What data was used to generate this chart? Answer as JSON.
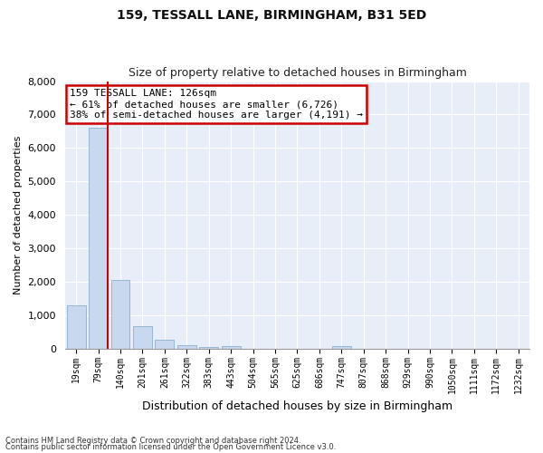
{
  "title1": "159, TESSALL LANE, BIRMINGHAM, B31 5ED",
  "title2": "Size of property relative to detached houses in Birmingham",
  "xlabel": "Distribution of detached houses by size in Birmingham",
  "ylabel": "Number of detached properties",
  "categories": [
    "19sqm",
    "79sqm",
    "140sqm",
    "201sqm",
    "261sqm",
    "322sqm",
    "383sqm",
    "443sqm",
    "504sqm",
    "565sqm",
    "625sqm",
    "686sqm",
    "747sqm",
    "807sqm",
    "868sqm",
    "929sqm",
    "990sqm",
    "1050sqm",
    "1111sqm",
    "1172sqm",
    "1232sqm"
  ],
  "values": [
    1300,
    6600,
    2050,
    680,
    280,
    110,
    65,
    80,
    0,
    0,
    0,
    0,
    70,
    0,
    0,
    0,
    0,
    0,
    0,
    0,
    0
  ],
  "bar_color": "#c8d8ee",
  "bar_edgecolor": "#8ab0d0",
  "vline_color": "#cc0000",
  "vline_x_index": 1,
  "annotation_text": "159 TESSALL LANE: 126sqm\n← 61% of detached houses are smaller (6,726)\n38% of semi-detached houses are larger (4,191) →",
  "annotation_box_facecolor": "#ffffff",
  "annotation_box_edgecolor": "#cc0000",
  "ylim": [
    0,
    8000
  ],
  "yticks": [
    0,
    1000,
    2000,
    3000,
    4000,
    5000,
    6000,
    7000,
    8000
  ],
  "background_color": "#e8eef8",
  "grid_color": "#ffffff",
  "footer1": "Contains HM Land Registry data © Crown copyright and database right 2024.",
  "footer2": "Contains public sector information licensed under the Open Government Licence v3.0."
}
